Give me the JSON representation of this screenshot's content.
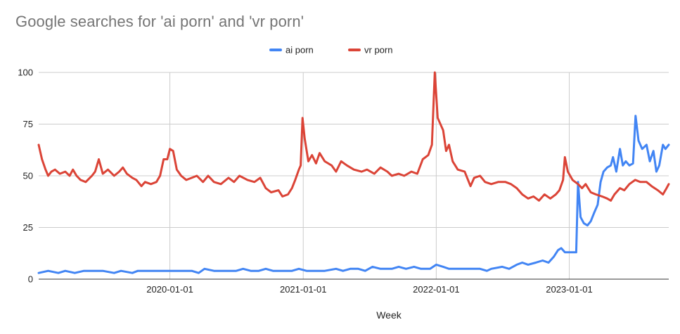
{
  "title": "Google searches for 'ai porn' and 'vr porn'",
  "chart_data": {
    "type": "line",
    "title": "Google searches for 'ai porn' and 'vr porn'",
    "xlabel": "Week",
    "ylabel": "",
    "x_start": "2019-01-06",
    "x_end": "2023-10-01",
    "ylim": [
      0,
      100
    ],
    "yticks": [
      0,
      25,
      50,
      75,
      100
    ],
    "xticks": [
      "2020-01-01",
      "2021-01-01",
      "2022-01-01",
      "2023-01-01"
    ],
    "legend_position": "top",
    "grid": true,
    "series": [
      {
        "name": "ai porn",
        "color": "#4285f4",
        "points": [
          [
            "2019-01-06",
            3
          ],
          [
            "2019-02-01",
            4
          ],
          [
            "2019-03-01",
            3
          ],
          [
            "2019-03-20",
            4
          ],
          [
            "2019-04-15",
            3
          ],
          [
            "2019-05-10",
            4
          ],
          [
            "2019-07-01",
            4
          ],
          [
            "2019-08-01",
            3
          ],
          [
            "2019-08-20",
            4
          ],
          [
            "2019-09-20",
            3
          ],
          [
            "2019-10-05",
            4
          ],
          [
            "2019-11-01",
            4
          ],
          [
            "2019-12-01",
            4
          ],
          [
            "2020-01-10",
            4
          ],
          [
            "2020-02-01",
            4
          ],
          [
            "2020-03-01",
            4
          ],
          [
            "2020-03-20",
            3
          ],
          [
            "2020-04-05",
            5
          ],
          [
            "2020-05-01",
            4
          ],
          [
            "2020-06-01",
            4
          ],
          [
            "2020-07-01",
            4
          ],
          [
            "2020-07-20",
            5
          ],
          [
            "2020-08-10",
            4
          ],
          [
            "2020-09-01",
            4
          ],
          [
            "2020-09-20",
            5
          ],
          [
            "2020-10-10",
            4
          ],
          [
            "2020-11-01",
            4
          ],
          [
            "2020-12-01",
            4
          ],
          [
            "2020-12-20",
            5
          ],
          [
            "2021-01-10",
            4
          ],
          [
            "2021-02-01",
            4
          ],
          [
            "2021-03-01",
            4
          ],
          [
            "2021-04-01",
            5
          ],
          [
            "2021-04-20",
            4
          ],
          [
            "2021-05-10",
            5
          ],
          [
            "2021-06-01",
            5
          ],
          [
            "2021-06-20",
            4
          ],
          [
            "2021-07-10",
            6
          ],
          [
            "2021-08-01",
            5
          ],
          [
            "2021-09-01",
            5
          ],
          [
            "2021-09-20",
            6
          ],
          [
            "2021-10-10",
            5
          ],
          [
            "2021-11-01",
            6
          ],
          [
            "2021-11-20",
            5
          ],
          [
            "2021-12-15",
            5
          ],
          [
            "2022-01-01",
            7
          ],
          [
            "2022-01-20",
            6
          ],
          [
            "2022-02-05",
            5
          ],
          [
            "2022-03-01",
            5
          ],
          [
            "2022-04-01",
            5
          ],
          [
            "2022-05-01",
            5
          ],
          [
            "2022-05-20",
            4
          ],
          [
            "2022-06-01",
            5
          ],
          [
            "2022-07-01",
            6
          ],
          [
            "2022-07-20",
            5
          ],
          [
            "2022-08-10",
            7
          ],
          [
            "2022-08-25",
            8
          ],
          [
            "2022-09-10",
            7
          ],
          [
            "2022-10-01",
            8
          ],
          [
            "2022-10-20",
            9
          ],
          [
            "2022-11-05",
            8
          ],
          [
            "2022-11-20",
            11
          ],
          [
            "2022-12-01",
            14
          ],
          [
            "2022-12-10",
            15
          ],
          [
            "2022-12-20",
            13
          ],
          [
            "2023-01-01",
            13
          ],
          [
            "2023-01-20",
            13
          ],
          [
            "2023-01-25",
            47
          ],
          [
            "2023-02-01",
            30
          ],
          [
            "2023-02-10",
            27
          ],
          [
            "2023-02-20",
            26
          ],
          [
            "2023-03-01",
            28
          ],
          [
            "2023-03-10",
            32
          ],
          [
            "2023-03-20",
            36
          ],
          [
            "2023-03-28",
            47
          ],
          [
            "2023-04-05",
            52
          ],
          [
            "2023-04-15",
            54
          ],
          [
            "2023-04-25",
            55
          ],
          [
            "2023-05-01",
            59
          ],
          [
            "2023-05-10",
            52
          ],
          [
            "2023-05-20",
            63
          ],
          [
            "2023-05-28",
            55
          ],
          [
            "2023-06-05",
            57
          ],
          [
            "2023-06-15",
            55
          ],
          [
            "2023-06-25",
            56
          ],
          [
            "2023-07-02",
            79
          ],
          [
            "2023-07-10",
            67
          ],
          [
            "2023-07-20",
            63
          ],
          [
            "2023-08-01",
            65
          ],
          [
            "2023-08-10",
            57
          ],
          [
            "2023-08-20",
            62
          ],
          [
            "2023-08-28",
            52
          ],
          [
            "2023-09-05",
            55
          ],
          [
            "2023-09-15",
            65
          ],
          [
            "2023-09-22",
            63
          ],
          [
            "2023-10-01",
            65
          ]
        ]
      },
      {
        "name": "vr porn",
        "color": "#db4437",
        "points": [
          [
            "2019-01-06",
            65
          ],
          [
            "2019-01-15",
            58
          ],
          [
            "2019-01-25",
            53
          ],
          [
            "2019-02-01",
            50
          ],
          [
            "2019-02-10",
            52
          ],
          [
            "2019-02-20",
            53
          ],
          [
            "2019-03-05",
            51
          ],
          [
            "2019-03-20",
            52
          ],
          [
            "2019-04-01",
            50
          ],
          [
            "2019-04-10",
            53
          ],
          [
            "2019-04-20",
            50
          ],
          [
            "2019-05-01",
            48
          ],
          [
            "2019-05-15",
            47
          ],
          [
            "2019-06-01",
            50
          ],
          [
            "2019-06-10",
            52
          ],
          [
            "2019-06-20",
            58
          ],
          [
            "2019-07-01",
            51
          ],
          [
            "2019-07-15",
            53
          ],
          [
            "2019-08-01",
            50
          ],
          [
            "2019-08-15",
            52
          ],
          [
            "2019-08-25",
            54
          ],
          [
            "2019-09-05",
            51
          ],
          [
            "2019-09-20",
            49
          ],
          [
            "2019-10-01",
            48
          ],
          [
            "2019-10-15",
            45
          ],
          [
            "2019-10-25",
            47
          ],
          [
            "2019-11-10",
            46
          ],
          [
            "2019-11-25",
            47
          ],
          [
            "2019-12-05",
            50
          ],
          [
            "2019-12-15",
            58
          ],
          [
            "2019-12-25",
            58
          ],
          [
            "2020-01-01",
            63
          ],
          [
            "2020-01-10",
            62
          ],
          [
            "2020-01-20",
            53
          ],
          [
            "2020-02-01",
            50
          ],
          [
            "2020-02-15",
            48
          ],
          [
            "2020-03-01",
            49
          ],
          [
            "2020-03-15",
            50
          ],
          [
            "2020-04-01",
            47
          ],
          [
            "2020-04-15",
            50
          ],
          [
            "2020-05-01",
            47
          ],
          [
            "2020-05-20",
            46
          ],
          [
            "2020-06-10",
            49
          ],
          [
            "2020-06-25",
            47
          ],
          [
            "2020-07-10",
            50
          ],
          [
            "2020-08-01",
            48
          ],
          [
            "2020-08-20",
            47
          ],
          [
            "2020-09-05",
            49
          ],
          [
            "2020-09-20",
            44
          ],
          [
            "2020-10-05",
            42
          ],
          [
            "2020-10-25",
            43
          ],
          [
            "2020-11-05",
            40
          ],
          [
            "2020-11-20",
            41
          ],
          [
            "2020-12-01",
            44
          ],
          [
            "2020-12-10",
            48
          ],
          [
            "2020-12-20",
            53
          ],
          [
            "2020-12-25",
            55
          ],
          [
            "2020-12-30",
            78
          ],
          [
            "2021-01-05",
            68
          ],
          [
            "2021-01-15",
            57
          ],
          [
            "2021-01-25",
            60
          ],
          [
            "2021-02-05",
            56
          ],
          [
            "2021-02-15",
            61
          ],
          [
            "2021-03-01",
            57
          ],
          [
            "2021-03-20",
            55
          ],
          [
            "2021-04-01",
            52
          ],
          [
            "2021-04-15",
            57
          ],
          [
            "2021-05-01",
            55
          ],
          [
            "2021-05-20",
            53
          ],
          [
            "2021-06-10",
            52
          ],
          [
            "2021-06-25",
            53
          ],
          [
            "2021-07-15",
            51
          ],
          [
            "2021-08-01",
            54
          ],
          [
            "2021-08-20",
            52
          ],
          [
            "2021-09-01",
            50
          ],
          [
            "2021-09-20",
            51
          ],
          [
            "2021-10-05",
            50
          ],
          [
            "2021-10-25",
            52
          ],
          [
            "2021-11-10",
            51
          ],
          [
            "2021-11-25",
            58
          ],
          [
            "2021-12-10",
            60
          ],
          [
            "2021-12-20",
            65
          ],
          [
            "2021-12-28",
            100
          ],
          [
            "2022-01-05",
            78
          ],
          [
            "2022-01-20",
            72
          ],
          [
            "2022-01-28",
            62
          ],
          [
            "2022-02-05",
            65
          ],
          [
            "2022-02-15",
            57
          ],
          [
            "2022-03-01",
            53
          ],
          [
            "2022-03-20",
            52
          ],
          [
            "2022-04-05",
            45
          ],
          [
            "2022-04-15",
            49
          ],
          [
            "2022-05-01",
            50
          ],
          [
            "2022-05-15",
            47
          ],
          [
            "2022-06-01",
            46
          ],
          [
            "2022-06-20",
            47
          ],
          [
            "2022-07-10",
            47
          ],
          [
            "2022-07-25",
            46
          ],
          [
            "2022-08-10",
            44
          ],
          [
            "2022-08-25",
            41
          ],
          [
            "2022-09-10",
            39
          ],
          [
            "2022-09-25",
            40
          ],
          [
            "2022-10-10",
            38
          ],
          [
            "2022-10-25",
            41
          ],
          [
            "2022-11-10",
            39
          ],
          [
            "2022-11-25",
            41
          ],
          [
            "2022-12-05",
            43
          ],
          [
            "2022-12-15",
            48
          ],
          [
            "2022-12-20",
            59
          ],
          [
            "2022-12-28",
            52
          ],
          [
            "2023-01-10",
            48
          ],
          [
            "2023-01-25",
            46
          ],
          [
            "2023-02-05",
            44
          ],
          [
            "2023-02-15",
            46
          ],
          [
            "2023-03-01",
            42
          ],
          [
            "2023-03-15",
            41
          ],
          [
            "2023-04-01",
            40
          ],
          [
            "2023-04-15",
            39
          ],
          [
            "2023-04-25",
            38
          ],
          [
            "2023-05-05",
            41
          ],
          [
            "2023-05-20",
            44
          ],
          [
            "2023-06-01",
            43
          ],
          [
            "2023-06-15",
            46
          ],
          [
            "2023-07-01",
            48
          ],
          [
            "2023-07-15",
            47
          ],
          [
            "2023-08-01",
            47
          ],
          [
            "2023-08-15",
            45
          ],
          [
            "2023-09-01",
            43
          ],
          [
            "2023-09-15",
            41
          ],
          [
            "2023-09-25",
            44
          ],
          [
            "2023-10-01",
            46
          ]
        ]
      }
    ]
  }
}
